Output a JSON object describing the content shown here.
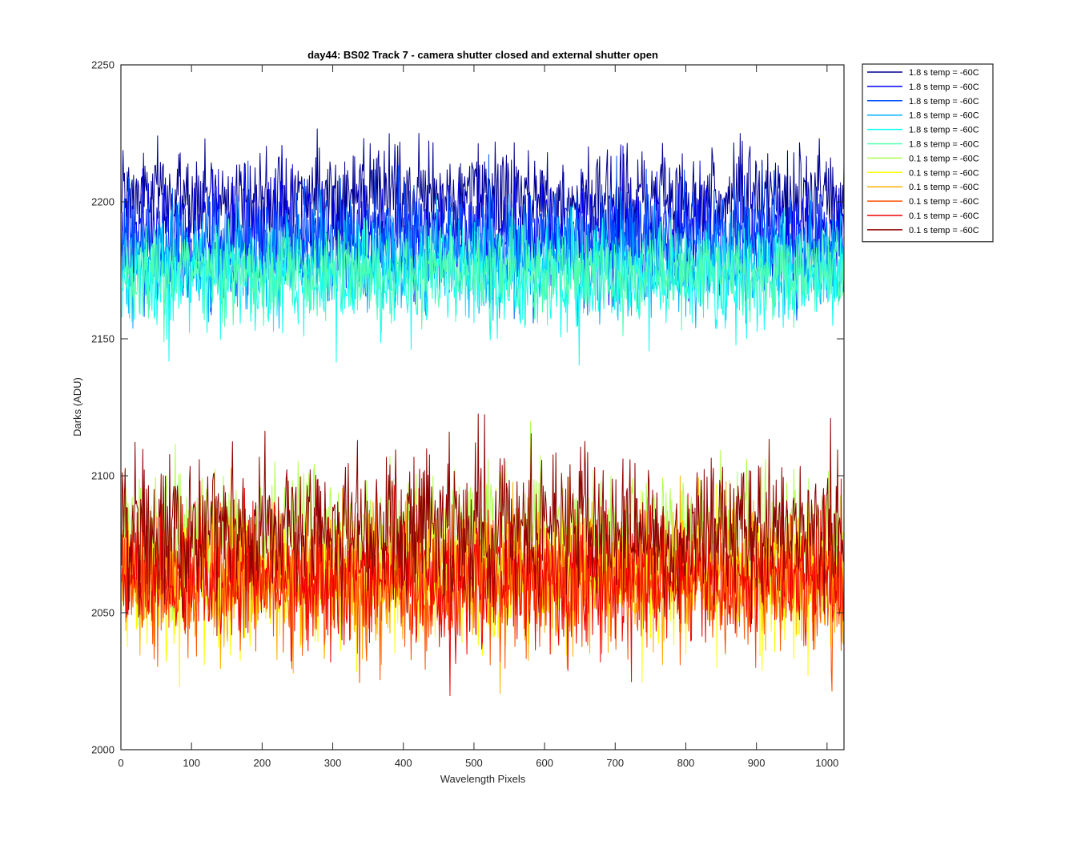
{
  "chart_data": {
    "type": "line",
    "title": "day44: BS02  Track 7 - camera shutter closed and external shutter open",
    "xlabel": "Wavelength Pixels",
    "ylabel": "Darks (ADU)",
    "xlim": [
      0,
      1024
    ],
    "ylim": [
      2000,
      2250
    ],
    "xticks": [
      "0",
      "100",
      "200",
      "300",
      "400",
      "500",
      "600",
      "700",
      "800",
      "900",
      "1000"
    ],
    "yticks": [
      "2000",
      "2050",
      "2100",
      "2150",
      "2200",
      "2250"
    ],
    "grid": false,
    "legend_position": "outside-top-right",
    "n_points": 1024,
    "series": [
      {
        "name": "1.8 s temp = -60C",
        "color": "#00008f",
        "mean": 2202,
        "spread": 9,
        "min": 2163,
        "max": 2233
      },
      {
        "name": "1.8 s temp = -60C",
        "color": "#0000ef",
        "mean": 2189,
        "spread": 10,
        "min": 2134,
        "max": 2231
      },
      {
        "name": "1.8 s temp = -60C",
        "color": "#0050ff",
        "mean": 2185,
        "spread": 10,
        "min": 2140,
        "max": 2226
      },
      {
        "name": "1.8 s temp = -60C",
        "color": "#00afff",
        "mean": 2178,
        "spread": 9,
        "min": 2137,
        "max": 2218
      },
      {
        "name": "1.8 s temp = -60C",
        "color": "#10ffef",
        "mean": 2172,
        "spread": 9,
        "min": 2129,
        "max": 2212
      },
      {
        "name": "1.8 s temp = -60C",
        "color": "#50ffaf",
        "mean": 2175,
        "spread": 8,
        "min": 2139,
        "max": 2207
      },
      {
        "name": "0.1 s temp = -60C",
        "color": "#afff50",
        "mean": 2078,
        "spread": 12,
        "min": 2030,
        "max": 2125
      },
      {
        "name": "0.1 s temp = -60C",
        "color": "#ffff00",
        "mean": 2062,
        "spread": 12,
        "min": 2016,
        "max": 2113
      },
      {
        "name": "0.1 s temp = -60C",
        "color": "#ffaf00",
        "mean": 2065,
        "spread": 12,
        "min": 2014,
        "max": 2118
      },
      {
        "name": "0.1 s temp = -60C",
        "color": "#ff5000",
        "mean": 2060,
        "spread": 12,
        "min": 2007,
        "max": 2114
      },
      {
        "name": "0.1 s temp = -60C",
        "color": "#ef0000",
        "mean": 2063,
        "spread": 12,
        "min": 2016,
        "max": 2121
      },
      {
        "name": "0.1 s temp = -60C",
        "color": "#8f0000",
        "mean": 2080,
        "spread": 13,
        "min": 2025,
        "max": 2140
      }
    ]
  }
}
